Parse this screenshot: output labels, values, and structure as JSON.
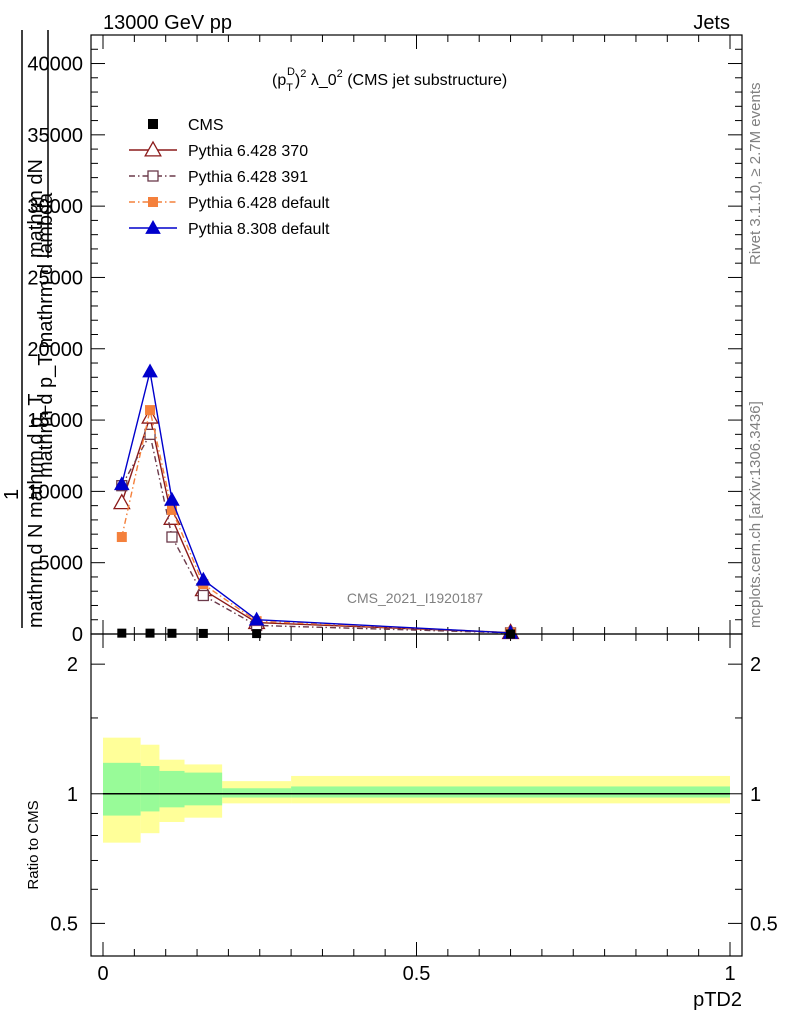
{
  "header": {
    "left": "13000 GeV pp",
    "right": "Jets"
  },
  "side_labels": {
    "rivet": "Rivet 3.1.10, ≥ 2.7M events",
    "mcplots": "mcplots.cern.ch [arXiv:1306.3436]"
  },
  "chart_data": [
    {
      "type": "line",
      "title_parts": {
        "p": "(p",
        "T": "T",
        "D": "D",
        "exp2": "2",
        "rest": " λ_0",
        "rest_exp": "2",
        "tail": " (CMS jet substructure)"
      },
      "ylabel_lines": [
        "mathrm dN",
        "mathrm d p_T mathrm d lambda",
        "1",
        "mathrm d N mathrm d p_T"
      ],
      "watermark": "CMS_2021_I1920187",
      "xlim": [
        0,
        1
      ],
      "ylim": [
        0,
        42000
      ],
      "yticks": [
        0,
        5000,
        10000,
        15000,
        20000,
        25000,
        30000,
        35000,
        40000
      ],
      "ytick_labels": [
        "0",
        "5000",
        "10000",
        "15000",
        "20000",
        "25000",
        "30000",
        "35000",
        "40000"
      ],
      "legend_position": "top-left",
      "series": [
        {
          "name": "CMS",
          "color": "#000000",
          "marker": "square-filled",
          "line": "none",
          "x": [
            0.03,
            0.075,
            0.11,
            0.16,
            0.245,
            0.65
          ],
          "y": [
            60,
            60,
            50,
            40,
            30,
            0
          ]
        },
        {
          "name": "Pythia 6.428 370",
          "color": "#8b1a1a",
          "marker": "triangle-open",
          "line": "solid",
          "x": [
            0.03,
            0.075,
            0.11,
            0.16,
            0.245,
            0.65
          ],
          "y": [
            9200,
            15200,
            8100,
            3100,
            800,
            100
          ]
        },
        {
          "name": "Pythia 6.428 391",
          "color": "#6b3a4a",
          "marker": "square-open",
          "line": "dashdot",
          "x": [
            0.03,
            0.075,
            0.11,
            0.16,
            0.245,
            0.65
          ],
          "y": [
            10400,
            14000,
            6800,
            2700,
            600,
            80
          ]
        },
        {
          "name": "Pythia 6.428 default",
          "color": "#f4803c",
          "marker": "square-filled",
          "line": "dashdot",
          "x": [
            0.03,
            0.075,
            0.11,
            0.16,
            0.245,
            0.65
          ],
          "y": [
            6800,
            15700,
            8700,
            3500,
            900,
            100
          ]
        },
        {
          "name": "Pythia 8.308 default",
          "color": "#0000cc",
          "marker": "triangle-filled",
          "line": "solid",
          "x": [
            0.03,
            0.075,
            0.11,
            0.16,
            0.245,
            0.65
          ],
          "y": [
            10500,
            18400,
            9400,
            3800,
            1000,
            80
          ]
        }
      ]
    },
    {
      "type": "area",
      "ylabel": "Ratio to CMS",
      "xlabel": "pTD2",
      "xlim": [
        0,
        1
      ],
      "ylim": [
        0.42,
        2.35
      ],
      "scale": "log",
      "yticks": [
        0.5,
        1,
        2
      ],
      "ytick_labels": [
        "0.5",
        "1",
        "2"
      ],
      "xticks": [
        0,
        0.5,
        1
      ],
      "xtick_labels": [
        "0",
        "0.5",
        "1"
      ],
      "reference_line": 1,
      "bins": [
        {
          "x0": 0.0,
          "x1": 0.06,
          "inner": [
            0.89,
            1.18
          ],
          "outer": [
            0.77,
            1.35
          ]
        },
        {
          "x0": 0.06,
          "x1": 0.09,
          "inner": [
            0.91,
            1.16
          ],
          "outer": [
            0.81,
            1.3
          ]
        },
        {
          "x0": 0.09,
          "x1": 0.13,
          "inner": [
            0.93,
            1.13
          ],
          "outer": [
            0.86,
            1.2
          ]
        },
        {
          "x0": 0.13,
          "x1": 0.19,
          "inner": [
            0.94,
            1.12
          ],
          "outer": [
            0.88,
            1.17
          ]
        },
        {
          "x0": 0.19,
          "x1": 0.3,
          "inner": [
            0.98,
            1.03
          ],
          "outer": [
            0.95,
            1.07
          ]
        },
        {
          "x0": 0.3,
          "x1": 1.0,
          "inner": [
            0.98,
            1.04
          ],
          "outer": [
            0.95,
            1.1
          ]
        }
      ],
      "colors": {
        "inner": "#98fb98",
        "outer": "#ffff99"
      }
    }
  ]
}
